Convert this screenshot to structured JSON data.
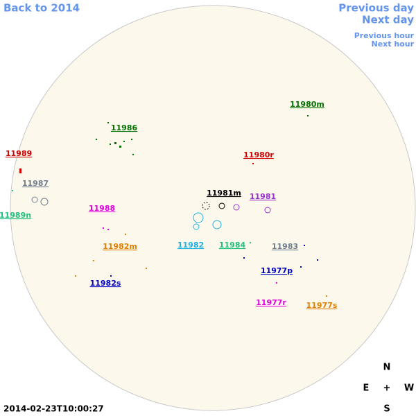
{
  "nav": {
    "back": "Back to 2014",
    "previous_day": "Previous day",
    "next_day": "Next day",
    "previous_hour": "Previous hour",
    "next_hour": "Next hour"
  },
  "regions": [
    "11980m",
    "11986",
    "11989",
    "11980r",
    "11987",
    "11981m",
    "11981",
    "11989n",
    "11988",
    "11982m",
    "11982",
    "11984",
    "11983",
    "11977p",
    "11982s",
    "11977r",
    "11977s"
  ],
  "compass": {
    "north": "N",
    "east": "E",
    "center": "+",
    "west": "W",
    "south": "S"
  },
  "timestamp": "2014-02-23T10:00:27"
}
